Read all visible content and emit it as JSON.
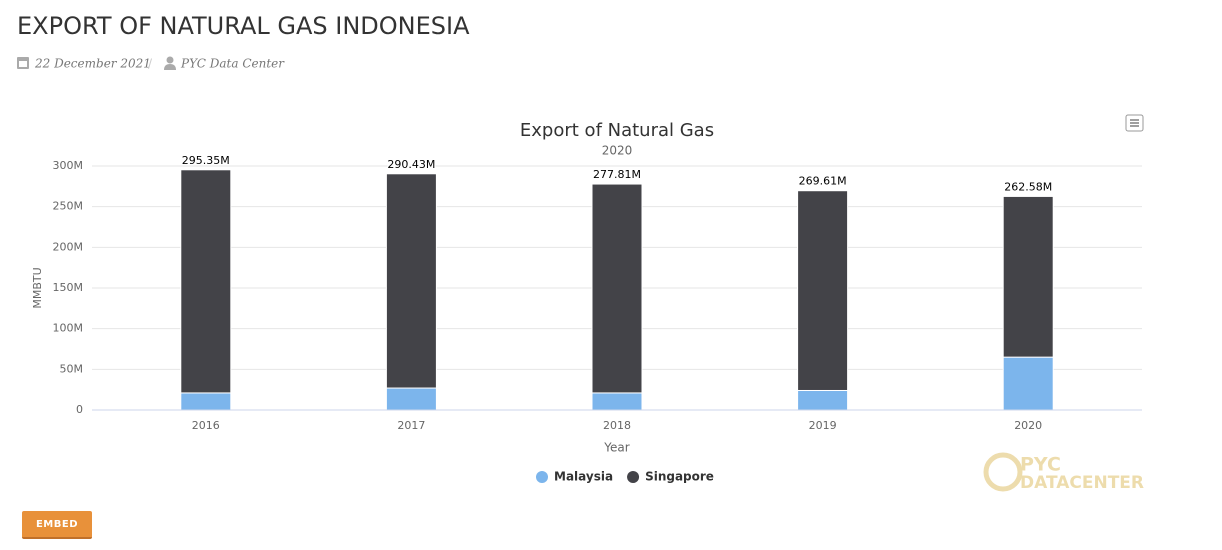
{
  "header": {
    "title": "EXPORT OF NATURAL GAS INDONESIA",
    "date": "22 December 2021",
    "author": "PYC Data Center"
  },
  "chart_data": {
    "type": "stacked_bar",
    "title": "Export of Natural Gas",
    "subtitle": "2020",
    "x_label": "Year",
    "y_label": "MMBTU",
    "categories": [
      "2016",
      "2017",
      "2018",
      "2019",
      "2020"
    ],
    "series": [
      {
        "name": "Malaysia",
        "color": "#7cb5ec",
        "values": [
          21000000,
          27000000,
          21000000,
          24000000,
          65000000
        ]
      },
      {
        "name": "Singapore",
        "color": "#434348",
        "values": [
          274350000,
          263430000,
          256810000,
          245610000,
          197580000
        ]
      }
    ],
    "totals": [
      295350000,
      290430000,
      277810000,
      269610000,
      262580000
    ],
    "total_labels": [
      "295.35M",
      "290.43M",
      "277.81M",
      "269.61M",
      "262.58M"
    ],
    "ylim": [
      0,
      300000000
    ],
    "yticks": [
      0,
      {
        "value": 50000000,
        "label": "50M"
      },
      {
        "value": 100000000,
        "label": "100M"
      },
      {
        "value": 150000000,
        "label": "150M"
      },
      {
        "value": 200000000,
        "label": "200M"
      },
      {
        "value": 250000000,
        "label": "250M"
      },
      {
        "value": 300000000,
        "label": "300M"
      }
    ],
    "grid": true
  },
  "watermark": [
    "PYC",
    "DATACENTER"
  ],
  "embed_button": "EMBED"
}
